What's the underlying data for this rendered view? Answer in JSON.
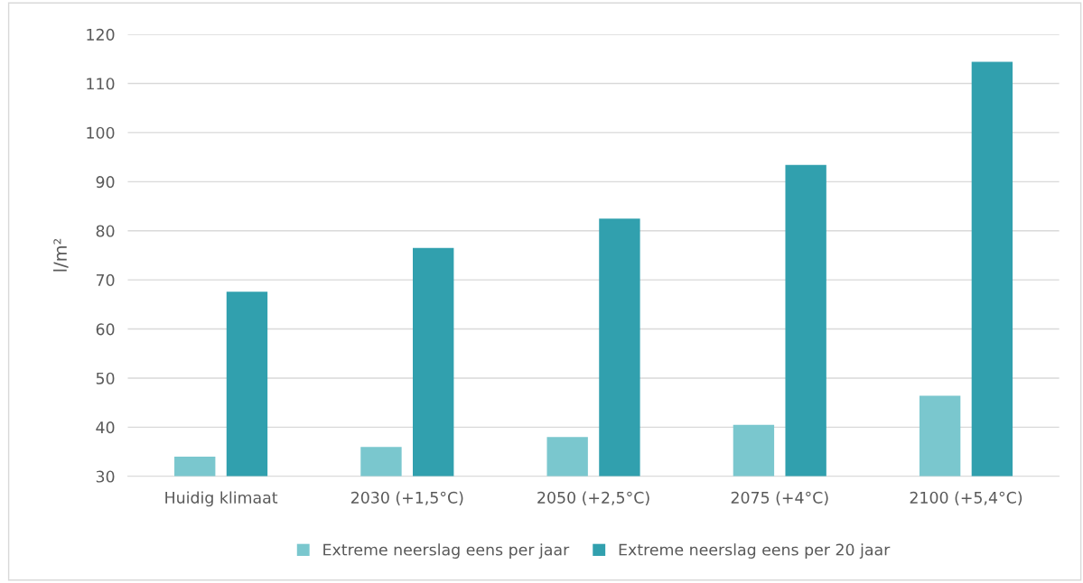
{
  "chart_data": {
    "type": "bar",
    "ylabel": "l/m²",
    "categories": [
      "Huidig klimaat",
      "2030 (+1,5°C)",
      "2050 (+2,5°C)",
      "2075 (+4°C)",
      "2100 (+5,4°C)"
    ],
    "series": [
      {
        "name": "Extreme neerslag eens per jaar",
        "color": "#7ac7ce",
        "values": [
          34,
          36,
          38,
          40.5,
          46.4
        ]
      },
      {
        "name": "Extreme neerslag eens per 20 jaar",
        "color": "#31a0ae",
        "values": [
          67.6,
          76.5,
          82.5,
          93.4,
          114.4
        ]
      }
    ],
    "ylim": [
      30,
      120
    ],
    "yticks": [
      30,
      40,
      50,
      60,
      70,
      80,
      90,
      100,
      110,
      120
    ],
    "grid": "y",
    "legend": "bottom"
  }
}
